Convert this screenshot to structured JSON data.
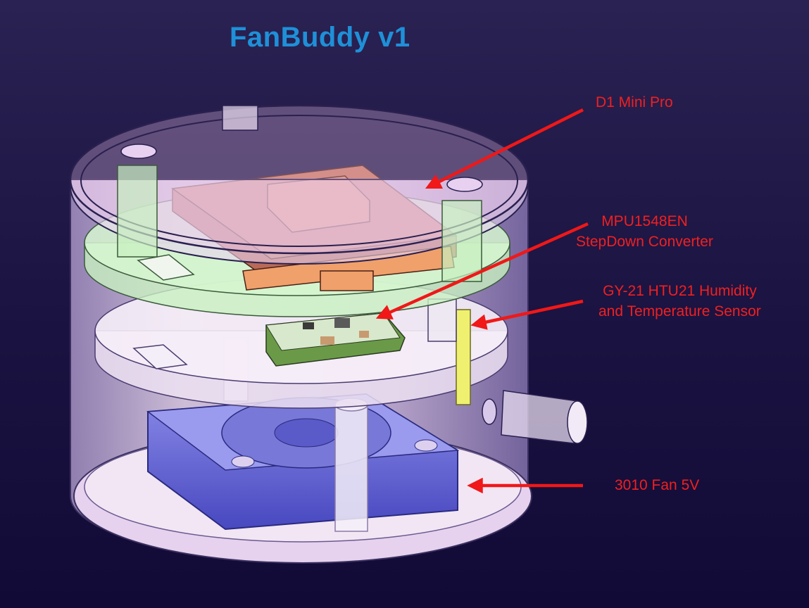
{
  "title": "FanBuddy v1",
  "labels": {
    "d1_mini_pro": "D1 Mini Pro",
    "stepdown_line1": "MPU1548EN",
    "stepdown_line2": "StepDown Converter",
    "sensor_line1": "GY-21 HTU21 Humidity",
    "sensor_line2": "and Temperature Sensor",
    "fan": "3010 Fan 5V"
  },
  "colors": {
    "title": "#1e90d8",
    "label": "#f02020",
    "arrow": "#f01818",
    "background": "#1a1240",
    "enclosure": "#e8c8f0",
    "lid": "#f2c8ec",
    "pcb_board": "#c8f0c0",
    "d1_mini": "#c87860",
    "stepdown_pcb": "#6a9a48",
    "sensor": "#f0f070",
    "fan_body": "#5a5ad0"
  }
}
